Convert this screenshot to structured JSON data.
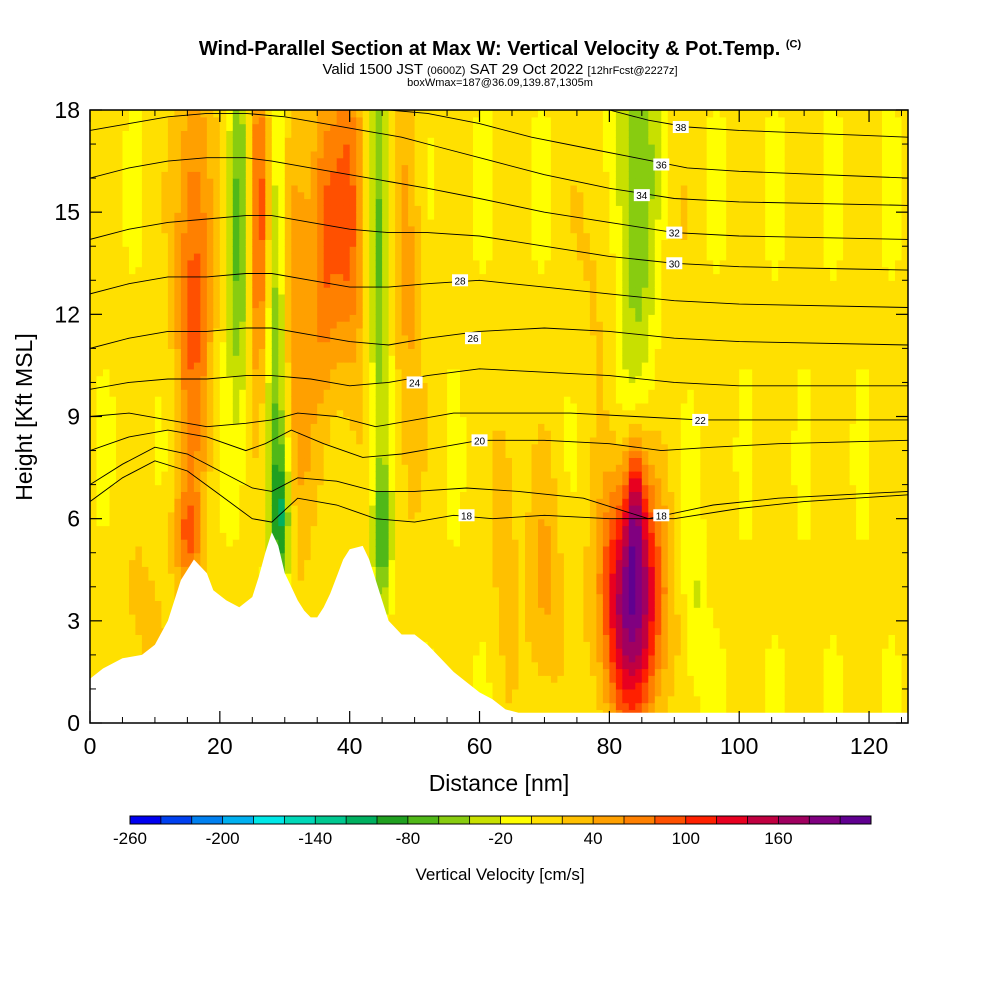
{
  "header": {
    "title": "Wind-Parallel Section at Max W: Vertical Velocity & Pot.Temp.",
    "copyright": "(C)",
    "valid_main": "Valid 1500 JST",
    "valid_utc": "(0600Z)",
    "valid_date": "SAT 29 Oct 2022",
    "valid_fcst": "[12hrFcst@2227z]",
    "boxinfo": "boxWmax=187@36.09,139.87,1305m"
  },
  "chart_data": {
    "type": "heatmap",
    "xlabel": "Distance [nm]",
    "ylabel": "Height [Kft MSL]",
    "xlim": [
      0,
      126
    ],
    "ylim": [
      0,
      18
    ],
    "xticks": [
      0,
      20,
      40,
      60,
      80,
      100,
      120
    ],
    "yticks": [
      0,
      3,
      6,
      9,
      12,
      15,
      18
    ],
    "colorbar": {
      "label": "Vertical Velocity [cm/s]",
      "tick_labels": [
        -260,
        -200,
        -140,
        -80,
        -20,
        40,
        100,
        160
      ],
      "min": -260,
      "step": 20,
      "colors": [
        "#0000f0",
        "#0040f0",
        "#0080f0",
        "#00b0f0",
        "#00e8e8",
        "#00d8b8",
        "#00c890",
        "#00b060",
        "#20a020",
        "#50b818",
        "#88cc10",
        "#c8e000",
        "#ffff00",
        "#ffe000",
        "#ffc000",
        "#ffa000",
        "#ff8000",
        "#ff5000",
        "#ff2000",
        "#e80020",
        "#c00040",
        "#a00060",
        "#800080",
        "#600090"
      ]
    },
    "terrain": [
      [
        0,
        1.3
      ],
      [
        2,
        1.6
      ],
      [
        5,
        1.9
      ],
      [
        8,
        2.0
      ],
      [
        10,
        2.3
      ],
      [
        12,
        3.0
      ],
      [
        14,
        4.2
      ],
      [
        16,
        4.8
      ],
      [
        18,
        4.4
      ],
      [
        19,
        3.9
      ],
      [
        21,
        3.6
      ],
      [
        23,
        3.4
      ],
      [
        25,
        3.7
      ],
      [
        26,
        4.3
      ],
      [
        27,
        5.0
      ],
      [
        28,
        5.6
      ],
      [
        29,
        5.2
      ],
      [
        30,
        4.4
      ],
      [
        31,
        4.0
      ],
      [
        32,
        3.6
      ],
      [
        33,
        3.3
      ],
      [
        34,
        3.1
      ],
      [
        35,
        3.1
      ],
      [
        36,
        3.4
      ],
      [
        37,
        3.8
      ],
      [
        38,
        4.3
      ],
      [
        39,
        4.8
      ],
      [
        40,
        5.1
      ],
      [
        42,
        5.2
      ],
      [
        43,
        4.8
      ],
      [
        44,
        4.2
      ],
      [
        45,
        3.6
      ],
      [
        46,
        3.0
      ],
      [
        48,
        2.6
      ],
      [
        50,
        2.6
      ],
      [
        52,
        2.3
      ],
      [
        54,
        1.9
      ],
      [
        56,
        1.5
      ],
      [
        58,
        1.2
      ],
      [
        60,
        0.9
      ],
      [
        62,
        0.7
      ],
      [
        64,
        0.4
      ],
      [
        66,
        0.3
      ],
      [
        126,
        0.3
      ]
    ],
    "theta_isolines": [
      {
        "label": "18",
        "points": [
          [
            0,
            6.5
          ],
          [
            5,
            7.2
          ],
          [
            10,
            7.7
          ],
          [
            15,
            7.4
          ],
          [
            20,
            6.7
          ],
          [
            25,
            6.0
          ],
          [
            28,
            5.9
          ],
          [
            32,
            6.6
          ],
          [
            38,
            6.4
          ],
          [
            44,
            6.0
          ],
          [
            50,
            5.9
          ],
          [
            56,
            6.1
          ],
          [
            62,
            6.0
          ],
          [
            70,
            6.1
          ],
          [
            80,
            6.0
          ],
          [
            90,
            6.0
          ],
          [
            100,
            6.3
          ],
          [
            110,
            6.5
          ],
          [
            126,
            6.7
          ]
        ],
        "label_at": [
          58,
          6.1
        ]
      },
      {
        "label": "18",
        "points": [
          [
            0,
            7.0
          ],
          [
            5,
            7.6
          ],
          [
            10,
            8.1
          ],
          [
            15,
            7.9
          ],
          [
            20,
            7.4
          ],
          [
            25,
            6.9
          ],
          [
            28,
            6.8
          ],
          [
            32,
            7.2
          ],
          [
            38,
            7.1
          ],
          [
            44,
            6.8
          ],
          [
            50,
            6.8
          ],
          [
            58,
            6.9
          ],
          [
            66,
            6.8
          ],
          [
            76,
            6.6
          ],
          [
            86,
            6.0
          ],
          [
            96,
            6.4
          ],
          [
            106,
            6.6
          ],
          [
            126,
            6.8
          ]
        ],
        "label_at": [
          88,
          6.1
        ]
      },
      {
        "label": "20",
        "points": [
          [
            0,
            8.0
          ],
          [
            6,
            8.4
          ],
          [
            12,
            8.6
          ],
          [
            18,
            8.4
          ],
          [
            24,
            8.0
          ],
          [
            27,
            8.2
          ],
          [
            31,
            8.6
          ],
          [
            36,
            8.2
          ],
          [
            42,
            7.8
          ],
          [
            48,
            7.9
          ],
          [
            54,
            8.1
          ],
          [
            60,
            8.3
          ],
          [
            70,
            8.3
          ],
          [
            80,
            8.2
          ],
          [
            88,
            8.0
          ],
          [
            96,
            8.1
          ],
          [
            106,
            8.2
          ],
          [
            126,
            8.3
          ]
        ],
        "label_at": [
          60,
          8.3
        ]
      },
      {
        "label": "22",
        "points": [
          [
            0,
            9.0
          ],
          [
            6,
            9.1
          ],
          [
            12,
            8.9
          ],
          [
            18,
            8.7
          ],
          [
            24,
            8.8
          ],
          [
            28,
            8.9
          ],
          [
            32,
            9.1
          ],
          [
            38,
            9.0
          ],
          [
            44,
            8.7
          ],
          [
            50,
            8.9
          ],
          [
            56,
            9.1
          ],
          [
            64,
            9.1
          ],
          [
            74,
            9.1
          ],
          [
            84,
            9.0
          ],
          [
            94,
            8.9
          ],
          [
            104,
            8.9
          ],
          [
            126,
            8.9
          ]
        ],
        "label_at": [
          94,
          8.9
        ]
      },
      {
        "label": "24",
        "points": [
          [
            0,
            9.8
          ],
          [
            6,
            10.0
          ],
          [
            12,
            10.1
          ],
          [
            18,
            10.1
          ],
          [
            24,
            10.2
          ],
          [
            28,
            10.2
          ],
          [
            34,
            10.1
          ],
          [
            40,
            9.9
          ],
          [
            46,
            10.0
          ],
          [
            52,
            10.2
          ],
          [
            60,
            10.4
          ],
          [
            70,
            10.3
          ],
          [
            80,
            10.2
          ],
          [
            90,
            10.0
          ],
          [
            100,
            9.9
          ],
          [
            126,
            9.9
          ]
        ],
        "label_at": [
          50,
          10.0
        ]
      },
      {
        "label": "26",
        "points": [
          [
            0,
            11.0
          ],
          [
            6,
            11.3
          ],
          [
            12,
            11.5
          ],
          [
            18,
            11.5
          ],
          [
            24,
            11.6
          ],
          [
            28,
            11.6
          ],
          [
            34,
            11.4
          ],
          [
            40,
            11.2
          ],
          [
            46,
            11.1
          ],
          [
            52,
            11.3
          ],
          [
            60,
            11.5
          ],
          [
            70,
            11.6
          ],
          [
            80,
            11.5
          ],
          [
            90,
            11.3
          ],
          [
            100,
            11.2
          ],
          [
            126,
            11.1
          ]
        ],
        "label_at": [
          59,
          11.3
        ]
      },
      {
        "label": "28",
        "points": [
          [
            0,
            12.6
          ],
          [
            6,
            12.9
          ],
          [
            12,
            13.1
          ],
          [
            18,
            13.1
          ],
          [
            24,
            13.2
          ],
          [
            28,
            13.2
          ],
          [
            34,
            13.0
          ],
          [
            40,
            12.8
          ],
          [
            46,
            12.8
          ],
          [
            52,
            12.9
          ],
          [
            60,
            13.0
          ],
          [
            70,
            12.8
          ],
          [
            80,
            12.6
          ],
          [
            90,
            12.4
          ],
          [
            100,
            12.3
          ],
          [
            126,
            12.2
          ]
        ],
        "label_at": [
          57,
          13.0
        ]
      },
      {
        "label": "30",
        "points": [
          [
            0,
            14.2
          ],
          [
            6,
            14.5
          ],
          [
            12,
            14.7
          ],
          [
            18,
            14.8
          ],
          [
            24,
            14.9
          ],
          [
            28,
            14.9
          ],
          [
            34,
            14.7
          ],
          [
            40,
            14.5
          ],
          [
            46,
            14.4
          ],
          [
            52,
            14.4
          ],
          [
            60,
            14.3
          ],
          [
            70,
            14.0
          ],
          [
            80,
            13.7
          ],
          [
            90,
            13.5
          ],
          [
            100,
            13.4
          ],
          [
            126,
            13.3
          ]
        ],
        "label_at": [
          90,
          13.5
        ]
      },
      {
        "label": "32",
        "points": [
          [
            0,
            16.0
          ],
          [
            6,
            16.3
          ],
          [
            12,
            16.5
          ],
          [
            18,
            16.6
          ],
          [
            24,
            16.6
          ],
          [
            28,
            16.5
          ],
          [
            34,
            16.3
          ],
          [
            40,
            16.1
          ],
          [
            46,
            15.9
          ],
          [
            52,
            15.7
          ],
          [
            60,
            15.4
          ],
          [
            70,
            15.0
          ],
          [
            80,
            14.7
          ],
          [
            90,
            14.4
          ],
          [
            100,
            14.3
          ],
          [
            126,
            14.2
          ]
        ],
        "label_at": [
          90,
          14.4
        ]
      },
      {
        "label": "34",
        "points": [
          [
            0,
            17.4
          ],
          [
            6,
            17.6
          ],
          [
            12,
            17.8
          ],
          [
            18,
            17.9
          ],
          [
            24,
            17.9
          ],
          [
            30,
            17.8
          ],
          [
            36,
            17.6
          ],
          [
            42,
            17.4
          ],
          [
            48,
            17.2
          ],
          [
            54,
            16.9
          ],
          [
            62,
            16.5
          ],
          [
            70,
            16.1
          ],
          [
            80,
            15.7
          ],
          [
            90,
            15.4
          ],
          [
            100,
            15.3
          ],
          [
            126,
            15.2
          ]
        ],
        "label_at": [
          85,
          15.5
        ]
      },
      {
        "label": "36",
        "points": [
          [
            46,
            18.0
          ],
          [
            52,
            17.9
          ],
          [
            60,
            17.6
          ],
          [
            68,
            17.2
          ],
          [
            76,
            16.9
          ],
          [
            84,
            16.6
          ],
          [
            92,
            16.3
          ],
          [
            100,
            16.2
          ],
          [
            126,
            16.0
          ]
        ],
        "label_at": [
          88,
          16.4
        ]
      },
      {
        "label": "38",
        "points": [
          [
            80,
            18.0
          ],
          [
            86,
            17.7
          ],
          [
            92,
            17.5
          ],
          [
            100,
            17.4
          ],
          [
            126,
            17.2
          ]
        ],
        "label_at": [
          91,
          17.5
        ]
      }
    ],
    "velocity_features": [
      {
        "x": 16,
        "y": 13,
        "sx": 2.0,
        "sy": 4.5,
        "value": 85
      },
      {
        "x": 23,
        "y": 14.5,
        "sx": 1.3,
        "sy": 4.0,
        "value": -80
      },
      {
        "x": 26,
        "y": 15,
        "sx": 1.4,
        "sy": 3.5,
        "value": 100
      },
      {
        "x": 28.5,
        "y": 12,
        "sx": 1.1,
        "sy": 6.0,
        "value": -70
      },
      {
        "x": 32,
        "y": 12,
        "sx": 1.6,
        "sy": 5.0,
        "value": 50
      },
      {
        "x": 36,
        "y": 14,
        "sx": 1.6,
        "sy": 3.5,
        "value": 70
      },
      {
        "x": 40,
        "y": 15,
        "sx": 1.8,
        "sy": 3.5,
        "value": 80
      },
      {
        "x": 44.5,
        "y": 14,
        "sx": 1.1,
        "sy": 4.5,
        "value": -70
      },
      {
        "x": 49,
        "y": 13,
        "sx": 1.5,
        "sy": 5.0,
        "value": 40
      },
      {
        "x": 84,
        "y": 15,
        "sx": 3.0,
        "sy": 4.0,
        "value": -90
      },
      {
        "x": 80,
        "y": 14,
        "sx": 3.0,
        "sy": 3.0,
        "value": 40
      },
      {
        "x": 88,
        "y": 14,
        "sx": 2.5,
        "sy": 3.0,
        "value": 30
      },
      {
        "x": 83.5,
        "y": 3.6,
        "sx": 3.2,
        "sy": 2.5,
        "value": 190
      },
      {
        "x": 84,
        "y": 6.5,
        "sx": 1.0,
        "sy": 1.5,
        "value": 80
      },
      {
        "x": 93,
        "y": 3.5,
        "sx": 1.2,
        "sy": 2.0,
        "value": -30
      },
      {
        "x": 70,
        "y": 4,
        "sx": 2.0,
        "sy": 2.5,
        "value": 40
      },
      {
        "x": 64,
        "y": 6,
        "sx": 1.5,
        "sy": 3.0,
        "value": 30
      },
      {
        "x": 15,
        "y": 5.5,
        "sx": 1.5,
        "sy": 1.0,
        "value": 60
      },
      {
        "x": 45,
        "y": 5.5,
        "sx": 1.0,
        "sy": 1.5,
        "value": -80
      },
      {
        "x": 29.5,
        "y": 6.0,
        "sx": 1.0,
        "sy": 1.5,
        "value": -80
      },
      {
        "x": 8,
        "y": 3,
        "sx": 3.0,
        "sy": 2.0,
        "value": 20
      }
    ]
  }
}
